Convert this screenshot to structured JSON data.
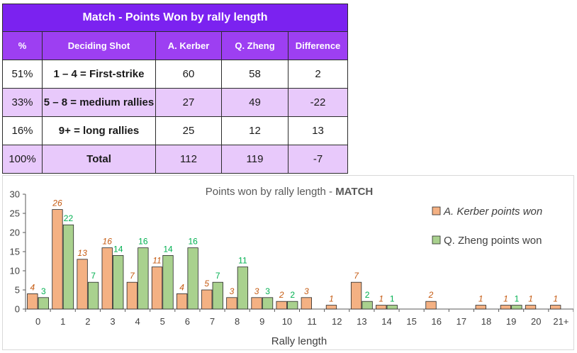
{
  "table": {
    "title": "Match - Points Won by rally length",
    "headers": [
      "%",
      "Deciding Shot",
      "A. Kerber",
      "Q. Zheng",
      "Difference"
    ],
    "rows": [
      {
        "pct": "51%",
        "shot": "1 – 4 = First-strike",
        "kerber": "60",
        "zheng": "58",
        "diff": "2"
      },
      {
        "pct": "33%",
        "shot": "5 – 8 = medium rallies",
        "kerber": "27",
        "zheng": "49",
        "diff": "-22"
      },
      {
        "pct": "16%",
        "shot": "9+ = long rallies",
        "kerber": "25",
        "zheng": "12",
        "diff": "13"
      },
      {
        "pct": "100%",
        "shot": "Total",
        "kerber": "112",
        "zheng": "119",
        "diff": "-7"
      }
    ]
  },
  "chart_data": {
    "type": "bar",
    "title_prefix": "Points won by rally length - ",
    "title_bold": "MATCH",
    "xlabel": "Rally length",
    "ylabel": "",
    "ylim": [
      0,
      30
    ],
    "yticks": [
      0,
      5,
      10,
      15,
      20,
      25,
      30
    ],
    "grid": false,
    "legend_position": "right",
    "categories": [
      "0",
      "1",
      "2",
      "3",
      "4",
      "5",
      "6",
      "7",
      "8",
      "9",
      "10",
      "11",
      "12",
      "13",
      "14",
      "15",
      "16",
      "17",
      "18",
      "19",
      "20",
      "21+"
    ],
    "series": [
      {
        "name": "A. Kerber points won",
        "color": "#f4b183",
        "label_color": "#c55a11",
        "label_italic": true,
        "values": [
          4,
          26,
          13,
          16,
          7,
          11,
          4,
          5,
          3,
          3,
          2,
          3,
          1,
          7,
          1,
          0,
          2,
          0,
          1,
          1,
          1,
          1
        ]
      },
      {
        "name": "Q. Zheng points won",
        "color": "#a9d18e",
        "label_color": "#00b050",
        "label_italic": false,
        "values": [
          3,
          22,
          7,
          14,
          16,
          14,
          16,
          7,
          11,
          3,
          2,
          0,
          0,
          2,
          1,
          0,
          0,
          0,
          0,
          1,
          0,
          0
        ]
      }
    ]
  }
}
